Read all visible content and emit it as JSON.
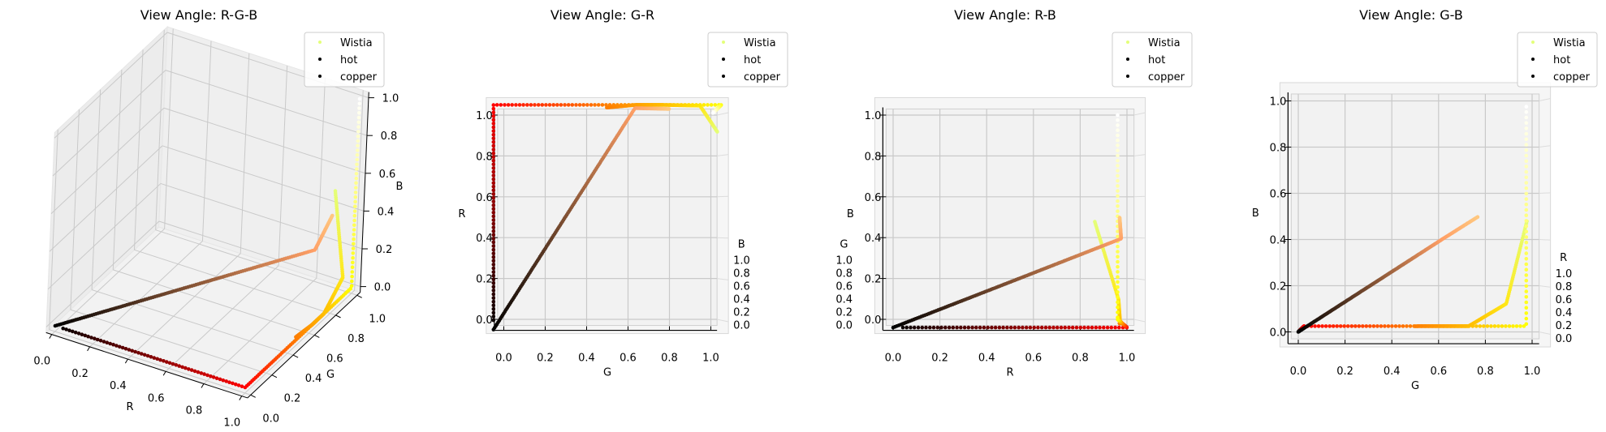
{
  "chart_data": {
    "type": "scatter",
    "n_points": 160,
    "ticks": [
      "0.0",
      "0.2",
      "0.4",
      "0.6",
      "0.8",
      "1.0"
    ],
    "tick_values": [
      0,
      0.2,
      0.4,
      0.6,
      0.8,
      1.0
    ],
    "axis_range": [
      0,
      1
    ],
    "grid": true,
    "series": [
      {
        "name": "Wistia",
        "legend_color": "#e4ff7a",
        "stops": [
          [
            0,
            0.894,
            1.0,
            0.478
          ],
          [
            0.25,
            1.0,
            0.91,
            0.102
          ],
          [
            0.5,
            1.0,
            0.741,
            0.0
          ],
          [
            0.75,
            1.0,
            0.627,
            0.0
          ],
          [
            1.0,
            0.988,
            0.498,
            0.0
          ]
        ]
      },
      {
        "name": "hot",
        "legend_color": "#000000",
        "stops": [
          [
            0,
            0.0416,
            0.0,
            0.0
          ],
          [
            0.365,
            1.0,
            0.0,
            0.0
          ],
          [
            0.746,
            1.0,
            1.0,
            0.0
          ],
          [
            1.0,
            1.0,
            1.0,
            1.0
          ]
        ]
      },
      {
        "name": "copper",
        "legend_color": "#000000",
        "stops": [
          [
            0,
            0.0,
            0.0,
            0.0
          ],
          [
            0.8,
            1.0,
            0.625,
            0.398
          ],
          [
            1.0,
            1.0,
            0.7812,
            0.4975
          ]
        ]
      }
    ],
    "panels": [
      {
        "title": "View Angle: R-G-B",
        "xlabel": "R",
        "ylabel": "G",
        "zlabel": "B",
        "legend_position": "upper right"
      },
      {
        "title": "View Angle: G-R",
        "xlabel": "G",
        "ylabel": "R",
        "zlabel": "B",
        "legend_position": "upper right"
      },
      {
        "title": "View Angle: R-B",
        "xlabel": "R",
        "ylabel": "B",
        "zlabel": "G",
        "legend_position": "upper right"
      },
      {
        "title": "View Angle: G-B",
        "xlabel": "G",
        "ylabel": "B",
        "zlabel": "R",
        "legend_position": "upper right"
      }
    ]
  }
}
